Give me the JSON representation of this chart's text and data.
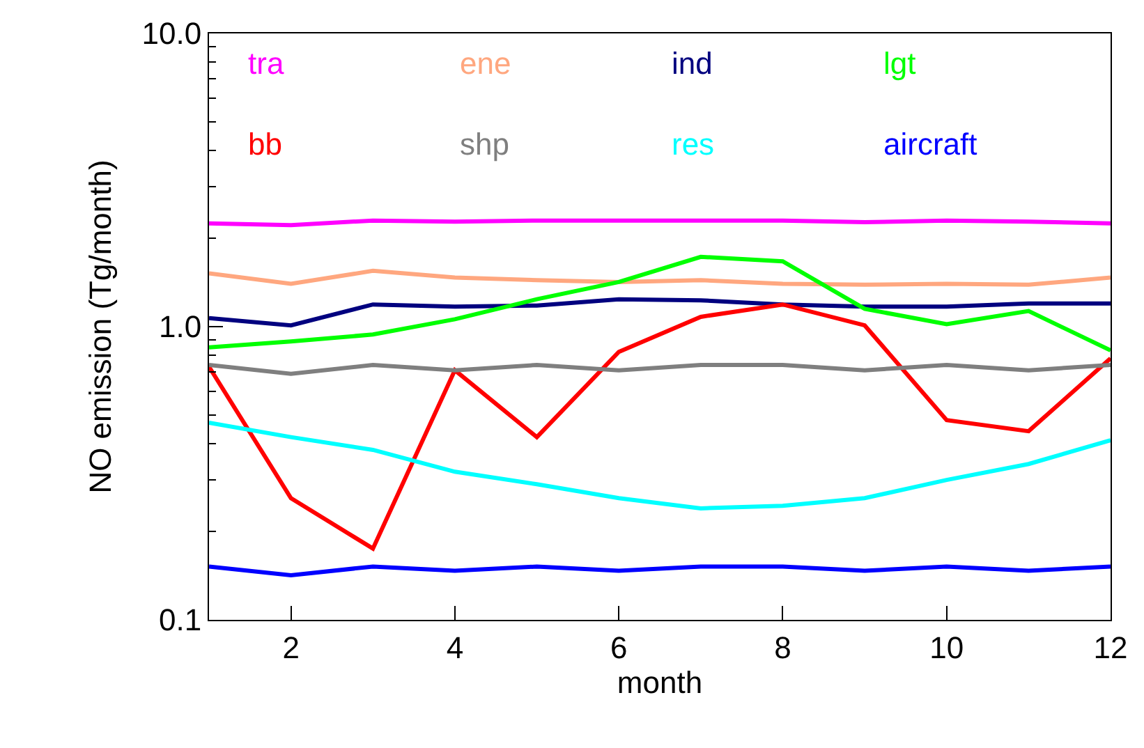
{
  "chart_data": {
    "type": "line",
    "xlabel": "month",
    "ylabel": "NO emission (Tg/month)",
    "x": [
      1,
      2,
      3,
      4,
      5,
      6,
      7,
      8,
      9,
      10,
      11,
      12
    ],
    "xlim": [
      1,
      12
    ],
    "xticks": [
      2,
      4,
      6,
      8,
      10,
      12
    ],
    "ylim": [
      0.1,
      10
    ],
    "yticks": [
      0.1,
      {
        "value": 1,
        "label": "1.0"
      },
      {
        "value": 10,
        "label": "10.0"
      }
    ],
    "log": true,
    "marker": "none",
    "line_style": "solid",
    "series": [
      {
        "name": "tra",
        "color": "#ff00ff",
        "values": [
          2.25,
          2.22,
          2.3,
          2.28,
          2.3,
          2.3,
          2.3,
          2.3,
          2.27,
          2.3,
          2.28,
          2.25
        ]
      },
      {
        "name": "ene",
        "color": "#ffa77f",
        "values": [
          1.52,
          1.4,
          1.55,
          1.47,
          1.44,
          1.42,
          1.44,
          1.4,
          1.39,
          1.4,
          1.39,
          1.47
        ]
      },
      {
        "name": "ind",
        "color": "#00007f",
        "values": [
          1.07,
          1.01,
          1.19,
          1.17,
          1.18,
          1.24,
          1.23,
          1.19,
          1.17,
          1.17,
          1.2,
          1.2
        ]
      },
      {
        "name": "lgt",
        "color": "#00ff00",
        "values": [
          0.85,
          0.89,
          0.94,
          1.06,
          1.24,
          1.42,
          1.73,
          1.67,
          1.15,
          1.02,
          1.13,
          0.83
        ]
      },
      {
        "name": "bb",
        "color": "#ff0000",
        "values": [
          0.73,
          0.26,
          0.175,
          0.71,
          0.42,
          0.82,
          1.08,
          1.19,
          1.01,
          0.48,
          0.44,
          0.78
        ]
      },
      {
        "name": "shp",
        "color": "#7f7f7f",
        "values": [
          0.74,
          0.69,
          0.74,
          0.71,
          0.74,
          0.71,
          0.74,
          0.74,
          0.71,
          0.74,
          0.71,
          0.74
        ]
      },
      {
        "name": "res",
        "color": "#00ffff",
        "values": [
          0.47,
          0.42,
          0.38,
          0.32,
          0.29,
          0.26,
          0.24,
          0.245,
          0.26,
          0.3,
          0.34,
          0.41
        ]
      },
      {
        "name": "aircraft",
        "color": "#0000ff",
        "values": [
          0.152,
          0.142,
          0.152,
          0.147,
          0.152,
          0.147,
          0.152,
          0.152,
          0.147,
          0.152,
          0.147,
          0.152
        ]
      }
    ]
  }
}
